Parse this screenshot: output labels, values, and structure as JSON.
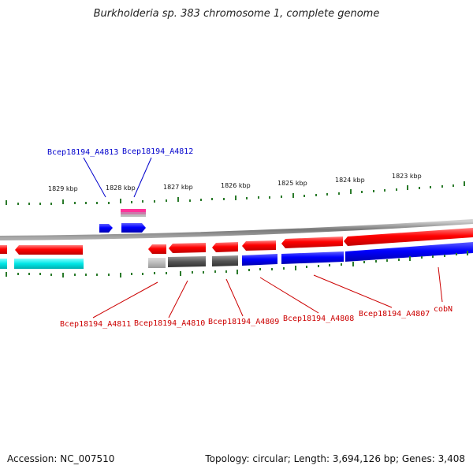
{
  "header": {
    "title": "Burkholderia sp. 383 chromosome 1, complete genome"
  },
  "footer": {
    "accession": "Accession: NC_007510",
    "topology": "Topology: circular; Length: 3,694,126 bp; Genes: 3,408"
  },
  "scale_labels": [
    "1829 kbp",
    "1828 kbp",
    "1827 kbp",
    "1826 kbp",
    "1825 kbp",
    "1824 kbp",
    "1823 kbp"
  ],
  "gene_labels_top": [
    "Bcep18194_A4813",
    "Bcep18194_A4812"
  ],
  "gene_labels_bottom": [
    "Bcep18194_A4811",
    "Bcep18194_A4810",
    "Bcep18194_A4809",
    "Bcep18194_A4808",
    "Bcep18194_A4807",
    "cobN"
  ],
  "colors": {
    "forward_strand": "#0000ff",
    "reverse_strand": "#ff0000",
    "top_label": "#0000cc",
    "bottom_label": "#cc0000",
    "tick": "#2a7a2a",
    "backbone": "#888888",
    "cyan_track": "#00e0e0",
    "magenta_track": "#ff3399",
    "gray_track": "#555555"
  }
}
